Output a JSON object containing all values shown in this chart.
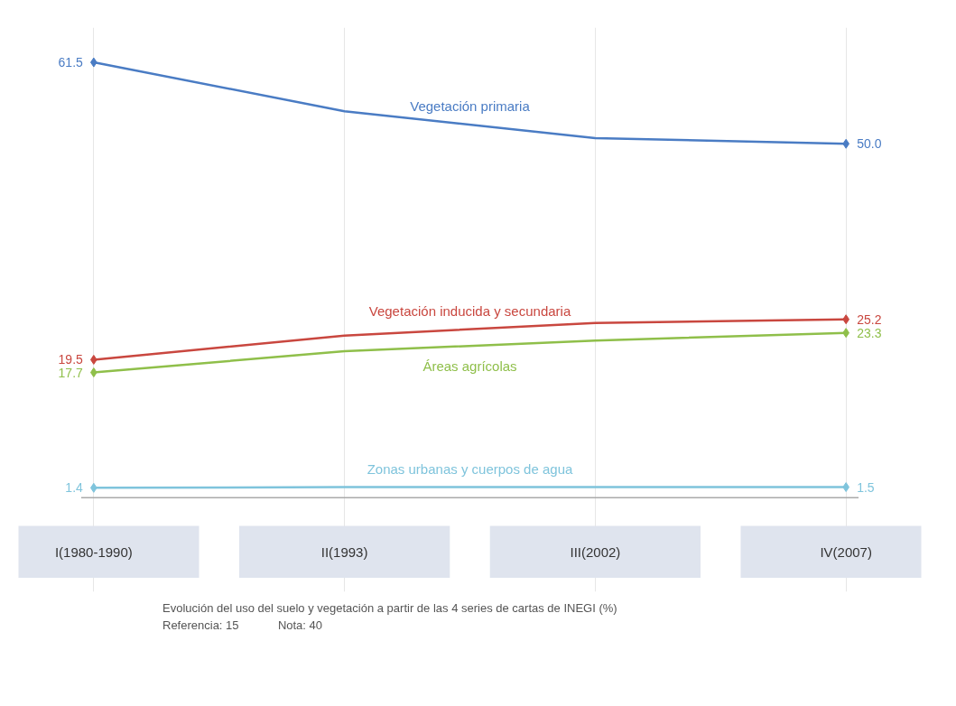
{
  "chart_data": {
    "type": "line",
    "categories": [
      "I(1980-1990)",
      "II(1993)",
      "III(2002)",
      "IV(2007)"
    ],
    "series": [
      {
        "name": "Vegetación primaria",
        "color": "#4a7cc4",
        "values": [
          61.5,
          54.6,
          50.8,
          50.0
        ],
        "value_labels": [
          "61.5",
          null,
          null,
          "50.0"
        ]
      },
      {
        "name": "Vegetación inducida y secundaria",
        "color": "#c9473f",
        "values": [
          19.5,
          22.9,
          24.7,
          25.2
        ],
        "value_labels": [
          "19.5",
          null,
          null,
          "25.2"
        ]
      },
      {
        "name": "Áreas agrícolas",
        "color": "#8fbf4a",
        "values": [
          17.7,
          20.7,
          22.2,
          23.3
        ],
        "value_labels": [
          "17.7",
          null,
          null,
          "23.3"
        ]
      },
      {
        "name": "Zonas urbanas y cuerpos de agua",
        "color": "#7fc4dc",
        "values": [
          1.4,
          1.5,
          1.5,
          1.5
        ],
        "value_labels": [
          "1.4",
          null,
          null,
          "1.5"
        ]
      }
    ],
    "marker": "diamond",
    "grid": "x",
    "annotations": [
      "Evolución del uso del suelo y vegetación a partir de las 4 series de cartas de INEGI (%)",
      "Referencia: 15",
      "Nota: 40"
    ]
  }
}
